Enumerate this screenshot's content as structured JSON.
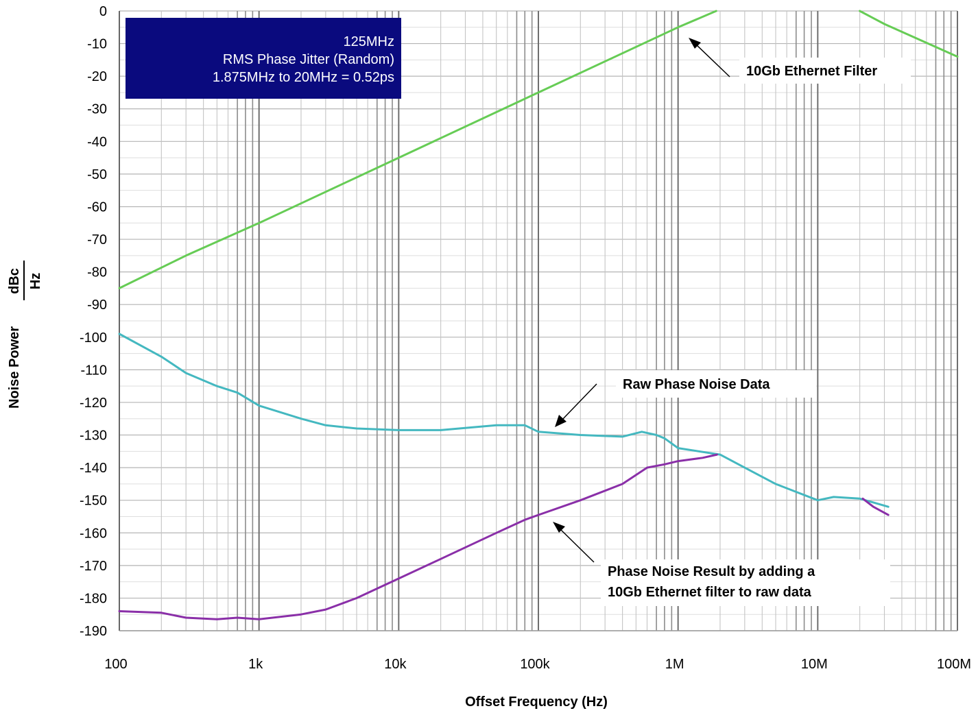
{
  "chart_data": {
    "type": "line",
    "x_scale": "log",
    "xlim": [
      100,
      100000000
    ],
    "ylim": [
      -190,
      0
    ],
    "grid": true,
    "xlabel": "Offset Frequency (Hz)",
    "ylabel": "Noise Power",
    "ylabel_unit_num": "dBc",
    "ylabel_unit_den": "Hz",
    "x_ticks": [
      {
        "value": 100,
        "label": "100"
      },
      {
        "value": 1000,
        "label": "1k"
      },
      {
        "value": 10000,
        "label": "10k"
      },
      {
        "value": 100000,
        "label": "100k"
      },
      {
        "value": 1000000,
        "label": "1M"
      },
      {
        "value": 10000000,
        "label": "10M"
      },
      {
        "value": 100000000,
        "label": "100M"
      }
    ],
    "y_ticks": [
      {
        "value": 0,
        "label": "0"
      },
      {
        "value": -10,
        "label": "-10"
      },
      {
        "value": -20,
        "label": "-20"
      },
      {
        "value": -30,
        "label": "-30"
      },
      {
        "value": -40,
        "label": "-40"
      },
      {
        "value": -50,
        "label": "-50"
      },
      {
        "value": -60,
        "label": "-60"
      },
      {
        "value": -70,
        "label": "-70"
      },
      {
        "value": -80,
        "label": "-80"
      },
      {
        "value": -90,
        "label": "-90"
      },
      {
        "value": -100,
        "label": "-100"
      },
      {
        "value": -110,
        "label": "-110"
      },
      {
        "value": -120,
        "label": "-120"
      },
      {
        "value": -130,
        "label": "-130"
      },
      {
        "value": -140,
        "label": "-140"
      },
      {
        "value": -150,
        "label": "-150"
      },
      {
        "value": -160,
        "label": "-160"
      },
      {
        "value": -170,
        "label": "-170"
      },
      {
        "value": -180,
        "label": "-180"
      },
      {
        "value": -190,
        "label": "-190"
      }
    ],
    "info_box": {
      "line1": "125MHz",
      "line2": "RMS Phase Jitter (Random)",
      "line3": "1.875MHz to 20MHz = 0.52ps"
    },
    "annotations": [
      {
        "text": "10Gb Ethernet Filter",
        "target_x": 1100000,
        "target_y": -2
      },
      {
        "text": "Raw Phase Noise Data",
        "target_x": 115000,
        "target_y": -128.5
      },
      {
        "lines": [
          "Phase Noise Result by adding a",
          "10Gb Ethernet filter to raw data"
        ],
        "target_x": 115000,
        "target_y": -156
      }
    ],
    "series": [
      {
        "color": "#66cc55",
        "segments": [
          [
            [
              100,
              -85
            ],
            [
              300,
              -75
            ],
            [
              1000,
              -65
            ],
            [
              10000,
              -45
            ],
            [
              100000,
              -25
            ],
            [
              1000000,
              -5
            ],
            [
              1875000,
              0
            ]
          ],
          [
            [
              20000000,
              0
            ],
            [
              30000000,
              -4
            ],
            [
              100000000,
              -14
            ]
          ]
        ]
      },
      {
        "color": "#44b8c0",
        "segments": [
          [
            [
              100,
              -99
            ],
            [
              200,
              -106
            ],
            [
              300,
              -111
            ],
            [
              500,
              -115
            ],
            [
              700,
              -117
            ],
            [
              1000,
              -121
            ],
            [
              2000,
              -125
            ],
            [
              3000,
              -127
            ],
            [
              5000,
              -128
            ],
            [
              10000,
              -128.5
            ],
            [
              20000,
              -128.5
            ],
            [
              50000,
              -127
            ],
            [
              80000,
              -127
            ],
            [
              100000,
              -129
            ],
            [
              200000,
              -130
            ],
            [
              400000,
              -130.5
            ],
            [
              550000,
              -129
            ],
            [
              700000,
              -130
            ],
            [
              800000,
              -131
            ],
            [
              1000000,
              -134
            ],
            [
              2000000,
              -136
            ],
            [
              3000000,
              -140
            ],
            [
              5000000,
              -145
            ],
            [
              10000000,
              -150
            ],
            [
              13000000,
              -149
            ],
            [
              20000000,
              -149.5
            ],
            [
              32000000,
              -152
            ]
          ]
        ]
      },
      {
        "color": "#8a2fa8",
        "segments": [
          [
            [
              100,
              -184
            ],
            [
              200,
              -184.5
            ],
            [
              300,
              -186
            ],
            [
              500,
              -186.5
            ],
            [
              700,
              -186
            ],
            [
              1000,
              -186.5
            ],
            [
              2000,
              -185
            ],
            [
              3000,
              -183.5
            ],
            [
              5000,
              -180
            ],
            [
              10000,
              -174
            ],
            [
              20000,
              -168
            ],
            [
              50000,
              -160
            ],
            [
              80000,
              -156
            ],
            [
              100000,
              -154.5
            ],
            [
              200000,
              -150
            ],
            [
              400000,
              -145
            ],
            [
              600000,
              -140
            ],
            [
              800000,
              -139
            ],
            [
              1000000,
              -138
            ],
            [
              1500000,
              -137
            ],
            [
              1900000,
              -136
            ]
          ],
          [
            [
              21000000,
              -149.5
            ],
            [
              25000000,
              -152
            ],
            [
              32000000,
              -154.5
            ]
          ]
        ]
      }
    ]
  }
}
